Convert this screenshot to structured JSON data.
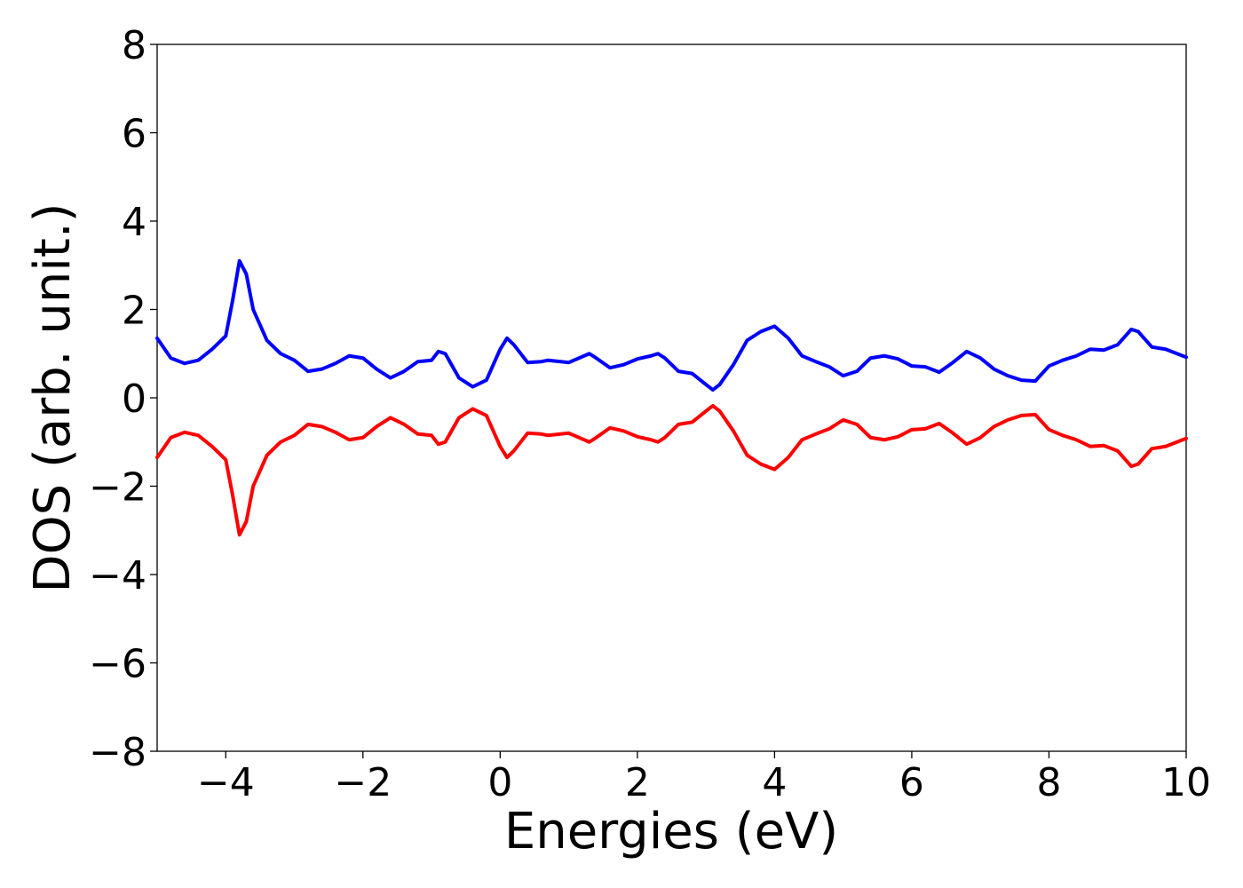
{
  "chart_data": {
    "type": "line",
    "xlabel": "Energies (eV)",
    "ylabel": "DOS (arb. unit.)",
    "x": [
      -5,
      -4.8,
      -4.6,
      -4.4,
      -4.2,
      -4.0,
      -3.9,
      -3.8,
      -3.7,
      -3.6,
      -3.4,
      -3.2,
      -3.0,
      -2.8,
      -2.6,
      -2.4,
      -2.2,
      -2.0,
      -1.8,
      -1.6,
      -1.4,
      -1.2,
      -1.0,
      -0.9,
      -0.8,
      -0.6,
      -0.4,
      -0.2,
      0.0,
      0.1,
      0.2,
      0.4,
      0.6,
      0.7,
      1.0,
      1.3,
      1.4,
      1.6,
      1.8,
      2.0,
      2.2,
      2.3,
      2.4,
      2.6,
      2.8,
      3.0,
      3.1,
      3.2,
      3.4,
      3.6,
      3.8,
      4.0,
      4.2,
      4.4,
      4.6,
      4.8,
      5.0,
      5.2,
      5.4,
      5.6,
      5.8,
      6.0,
      6.2,
      6.4,
      6.6,
      6.8,
      7.0,
      7.2,
      7.4,
      7.6,
      7.8,
      8.0,
      8.2,
      8.4,
      8.6,
      8.8,
      9.0,
      9.2,
      9.3,
      9.5,
      9.7,
      10.0
    ],
    "series": [
      {
        "color": "#0000ff",
        "values": [
          1.35,
          0.9,
          0.78,
          0.85,
          1.1,
          1.4,
          2.2,
          3.1,
          2.8,
          2.0,
          1.3,
          1.0,
          0.85,
          0.6,
          0.65,
          0.78,
          0.95,
          0.9,
          0.65,
          0.45,
          0.6,
          0.82,
          0.85,
          1.05,
          1.0,
          0.45,
          0.25,
          0.4,
          1.1,
          1.35,
          1.2,
          0.8,
          0.82,
          0.85,
          0.8,
          1.0,
          0.9,
          0.68,
          0.75,
          0.88,
          0.95,
          1.0,
          0.9,
          0.6,
          0.55,
          0.3,
          0.18,
          0.3,
          0.75,
          1.3,
          1.5,
          1.62,
          1.35,
          0.95,
          0.82,
          0.7,
          0.5,
          0.6,
          0.9,
          0.95,
          0.88,
          0.72,
          0.7,
          0.58,
          0.8,
          1.05,
          0.9,
          0.65,
          0.5,
          0.4,
          0.38,
          0.72,
          0.85,
          0.95,
          1.1,
          1.08,
          1.2,
          1.55,
          1.5,
          1.15,
          1.1,
          0.92
        ]
      },
      {
        "color": "#ff0000",
        "values": [
          -1.35,
          -0.9,
          -0.78,
          -0.85,
          -1.1,
          -1.4,
          -2.2,
          -3.1,
          -2.8,
          -2.0,
          -1.3,
          -1.0,
          -0.85,
          -0.6,
          -0.65,
          -0.78,
          -0.95,
          -0.9,
          -0.65,
          -0.45,
          -0.6,
          -0.82,
          -0.85,
          -1.05,
          -1.0,
          -0.45,
          -0.25,
          -0.4,
          -1.1,
          -1.35,
          -1.2,
          -0.8,
          -0.82,
          -0.85,
          -0.8,
          -1.0,
          -0.9,
          -0.68,
          -0.75,
          -0.88,
          -0.95,
          -1.0,
          -0.9,
          -0.6,
          -0.55,
          -0.3,
          -0.18,
          -0.3,
          -0.75,
          -1.3,
          -1.5,
          -1.62,
          -1.35,
          -0.95,
          -0.82,
          -0.7,
          -0.5,
          -0.6,
          -0.9,
          -0.95,
          -0.88,
          -0.72,
          -0.7,
          -0.58,
          -0.8,
          -1.05,
          -0.9,
          -0.65,
          -0.5,
          -0.4,
          -0.38,
          -0.72,
          -0.85,
          -0.95,
          -1.1,
          -1.08,
          -1.2,
          -1.55,
          -1.5,
          -1.15,
          -1.1,
          -0.92
        ]
      }
    ],
    "xlim": [
      -5,
      10
    ],
    "xticks": [
      {
        "value": -4,
        "label": "−4"
      },
      {
        "value": -2,
        "label": "−2"
      },
      0,
      2,
      4,
      6,
      8,
      10
    ],
    "ylim": [
      -8,
      8
    ],
    "yticks": [
      {
        "value": -8,
        "label": "−8"
      },
      {
        "value": -6,
        "label": "−6"
      },
      {
        "value": -4,
        "label": "−4"
      },
      {
        "value": -2,
        "label": "−2"
      },
      0,
      2,
      4,
      6,
      8
    ],
    "grid": false
  }
}
